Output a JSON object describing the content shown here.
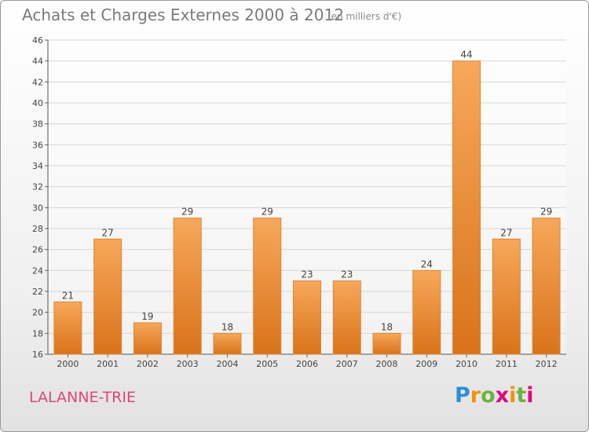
{
  "chart_data": {
    "type": "bar",
    "title": "Achats et Charges Externes 2000 à 2012",
    "unit_label": "(en milliers d'€)",
    "categories": [
      "2000",
      "2001",
      "2002",
      "2003",
      "2004",
      "2005",
      "2006",
      "2007",
      "2008",
      "2009",
      "2010",
      "2011",
      "2012"
    ],
    "values": [
      21,
      27,
      19,
      29,
      18,
      29,
      23,
      23,
      18,
      24,
      44,
      27,
      29
    ],
    "ylim": [
      16,
      46
    ],
    "y_ticks": [
      16,
      18,
      20,
      22,
      24,
      26,
      28,
      30,
      32,
      34,
      36,
      38,
      40,
      42,
      44,
      46
    ],
    "grid": true,
    "bar_color": "#f0913a"
  },
  "commune": "LALANNE-TRIE",
  "logo": {
    "letters": [
      "P",
      "r",
      "o",
      "x",
      "i",
      "t",
      "i"
    ],
    "colors": [
      "#2a8fd6",
      "#f39200",
      "#6cb33f",
      "#e5007d",
      "#f39200",
      "#6cb33f",
      "#e5007d"
    ]
  }
}
